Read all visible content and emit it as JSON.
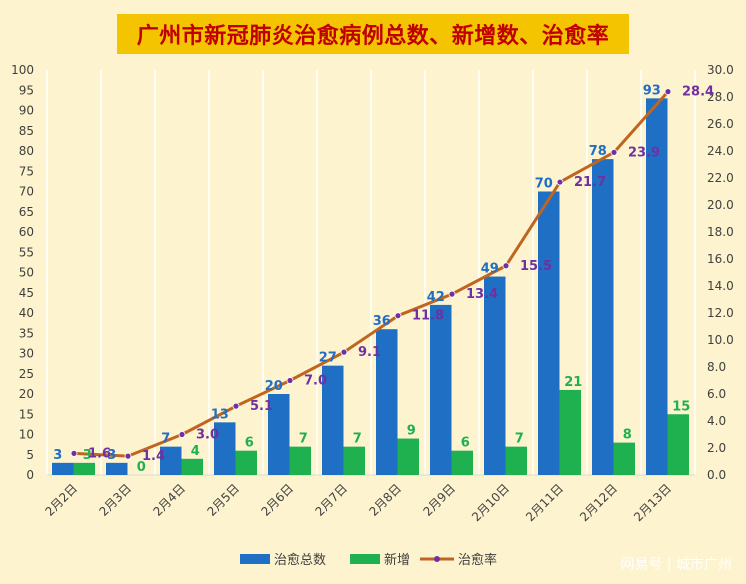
{
  "title": "广州市新冠肺炎治愈病例总数、新增数、治愈率",
  "watermark": "网易号 | 城市广州",
  "colors": {
    "background": "#fdf3cf",
    "title_bg": "#f5c400",
    "title_text": "#c00000",
    "total_bar": "#1f6fc5",
    "new_bar": "#1fb04f",
    "rate_line": "#c0651f",
    "rate_marker": "#7030a0",
    "total_label": "#1f6fc5",
    "new_label": "#1fb04f",
    "rate_label": "#7030a0",
    "grid": "#ffffff",
    "axis_text": "#404040"
  },
  "chart_data": {
    "type": "bar",
    "categories": [
      "2月2日",
      "2月3日",
      "2月4日",
      "2月5日",
      "2月6日",
      "2月7日",
      "2月8日",
      "2月9日",
      "2月10日",
      "2月11日",
      "2月12日",
      "2月13日"
    ],
    "series": [
      {
        "name": "治愈总数",
        "type": "bar",
        "axis": "left",
        "values": [
          3,
          3,
          7,
          13,
          20,
          27,
          36,
          42,
          49,
          70,
          78,
          93
        ]
      },
      {
        "name": "新增",
        "type": "bar",
        "axis": "left",
        "values": [
          3,
          0,
          4,
          6,
          7,
          7,
          9,
          6,
          7,
          21,
          8,
          15
        ]
      },
      {
        "name": "治愈率",
        "type": "line",
        "axis": "right",
        "values": [
          1.6,
          1.4,
          3.0,
          5.1,
          7.0,
          9.1,
          11.8,
          13.4,
          15.5,
          21.7,
          23.9,
          28.4
        ]
      }
    ],
    "ylim": [
      0,
      100
    ],
    "yticks": [
      "0",
      "5",
      "10",
      "15",
      "20",
      "25",
      "30",
      "35",
      "40",
      "45",
      "50",
      "55",
      "60",
      "65",
      "70",
      "75",
      "80",
      "85",
      "90",
      "95",
      "100"
    ],
    "y2lim": [
      0,
      30
    ],
    "y2ticks": [
      "0.0",
      "2.0",
      "4.0",
      "6.0",
      "8.0",
      "10.0",
      "12.0",
      "14.0",
      "16.0",
      "18.0",
      "20.0",
      "22.0",
      "24.0",
      "26.0",
      "28.0",
      "30.0"
    ],
    "grid": "vertical",
    "legend": "bottom"
  }
}
